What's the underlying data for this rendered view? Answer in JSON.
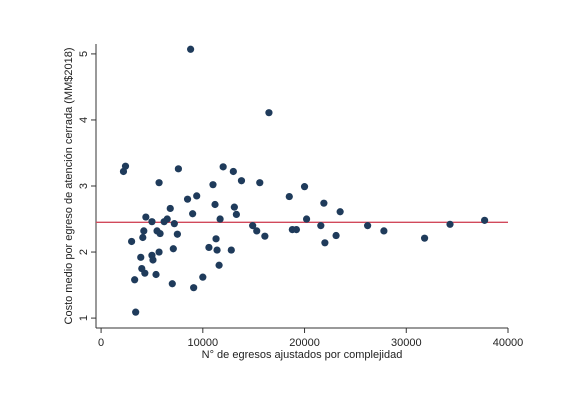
{
  "chart_data": {
    "type": "scatter",
    "title": "",
    "xlabel": "N° de egresos ajustados por complejidad",
    "ylabel": "Costo medio por egreso de atención cerrada (MM$2018)",
    "xlim": [
      -500,
      40000
    ],
    "ylim": [
      0.85,
      5.15
    ],
    "xticks": [
      0,
      10000,
      20000,
      30000,
      40000
    ],
    "xtick_labels": [
      "0",
      "10000",
      "20000",
      "30000",
      "40000"
    ],
    "yticks": [
      1,
      2,
      3,
      4,
      5
    ],
    "ytick_labels": [
      "1",
      "2",
      "3",
      "4",
      "5"
    ],
    "grid": false,
    "legend": "none",
    "reference_line": {
      "orientation": "horizontal",
      "y": 2.45,
      "color": "#d1495b"
    },
    "marker_color": "#1f3b5b",
    "points": [
      [
        2200,
        3.22
      ],
      [
        2400,
        3.3
      ],
      [
        3000,
        2.16
      ],
      [
        3300,
        1.58
      ],
      [
        3400,
        1.09
      ],
      [
        3900,
        1.92
      ],
      [
        4000,
        1.75
      ],
      [
        4100,
        2.22
      ],
      [
        4200,
        2.32
      ],
      [
        4300,
        1.68
      ],
      [
        4400,
        2.53
      ],
      [
        5000,
        2.46
      ],
      [
        5000,
        1.95
      ],
      [
        5100,
        1.88
      ],
      [
        5400,
        1.66
      ],
      [
        5500,
        2.32
      ],
      [
        5700,
        2.0
      ],
      [
        5700,
        3.05
      ],
      [
        5800,
        2.28
      ],
      [
        6200,
        2.46
      ],
      [
        6500,
        2.5
      ],
      [
        6800,
        2.66
      ],
      [
        7000,
        1.52
      ],
      [
        7100,
        2.05
      ],
      [
        7200,
        2.43
      ],
      [
        7500,
        2.27
      ],
      [
        7600,
        3.26
      ],
      [
        8500,
        2.8
      ],
      [
        8800,
        5.07
      ],
      [
        9000,
        2.58
      ],
      [
        9100,
        1.46
      ],
      [
        9400,
        2.85
      ],
      [
        10000,
        1.62
      ],
      [
        10600,
        2.07
      ],
      [
        11000,
        3.02
      ],
      [
        11200,
        2.72
      ],
      [
        11300,
        2.2
      ],
      [
        11400,
        2.03
      ],
      [
        11600,
        1.8
      ],
      [
        11700,
        2.5
      ],
      [
        12000,
        3.29
      ],
      [
        12800,
        2.03
      ],
      [
        13000,
        3.22
      ],
      [
        13100,
        2.68
      ],
      [
        13300,
        2.57
      ],
      [
        13800,
        3.08
      ],
      [
        14900,
        2.4
      ],
      [
        15300,
        2.32
      ],
      [
        15600,
        3.05
      ],
      [
        16100,
        2.24
      ],
      [
        16500,
        4.11
      ],
      [
        18500,
        2.84
      ],
      [
        18800,
        2.34
      ],
      [
        19200,
        2.34
      ],
      [
        20000,
        2.99
      ],
      [
        20200,
        2.5
      ],
      [
        21600,
        2.4
      ],
      [
        21900,
        2.74
      ],
      [
        22000,
        2.14
      ],
      [
        23100,
        2.25
      ],
      [
        23500,
        2.61
      ],
      [
        26200,
        2.4
      ],
      [
        27800,
        2.32
      ],
      [
        31800,
        2.21
      ],
      [
        34300,
        2.42
      ],
      [
        37700,
        2.48
      ]
    ]
  }
}
